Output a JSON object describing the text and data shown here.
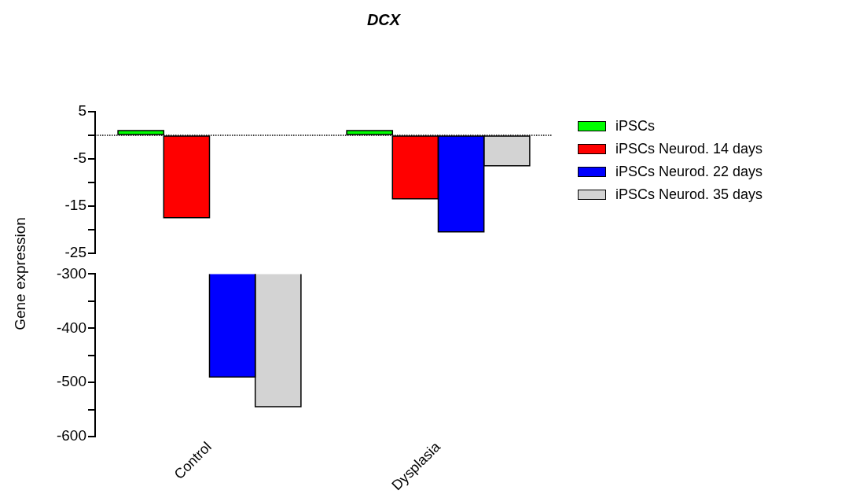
{
  "chart_data": [
    {
      "type": "bar",
      "title": "DCX",
      "ylabel": "Gene expression",
      "categories": [
        null,
        null
      ],
      "series": [
        {
          "name": "iPSCs",
          "color": "#00ff00",
          "values": [
            1,
            1
          ]
        },
        {
          "name": "iPSCs Neurod. 14 days",
          "color": "#ff0000",
          "values": [
            -17.5,
            -13.5
          ]
        },
        {
          "name": "iPSCs Neurod. 22 days",
          "color": "#0000ff",
          "values": [
            null,
            -20.5
          ]
        },
        {
          "name": "iPSCs Neurod. 35 days",
          "color": "#d3d3d3",
          "values": [
            null,
            -6.5
          ]
        }
      ],
      "ylim": [
        -25,
        5
      ],
      "yticks": [
        5,
        {
          "value": 0,
          "label": null
        },
        -5,
        {
          "value": -10,
          "label": null
        },
        -15,
        {
          "value": -20,
          "label": null
        },
        -25
      ],
      "ref_lines": [
        {
          "axis": "y",
          "value": 0,
          "line_style": "dotted",
          "color": "#000000"
        }
      ],
      "legend": "right",
      "tick_labels": "y",
      "grid": false
    },
    {
      "type": "bar",
      "categories": [
        "Control",
        "Dysplasia"
      ],
      "series": [
        {
          "color": "#00ff00",
          "values": [
            null,
            null
          ]
        },
        {
          "color": "#ff0000",
          "values": [
            null,
            null
          ]
        },
        {
          "color": "#0000ff",
          "values": [
            -490,
            null
          ]
        },
        {
          "color": "#d3d3d3",
          "values": [
            -545,
            null
          ]
        }
      ],
      "ylim": [
        -600,
        -300
      ],
      "yticks": [
        -300,
        {
          "value": -350,
          "label": null
        },
        -400,
        {
          "value": -450,
          "label": null
        },
        -500,
        {
          "value": -550,
          "label": null
        },
        -600
      ],
      "grid": false
    }
  ]
}
